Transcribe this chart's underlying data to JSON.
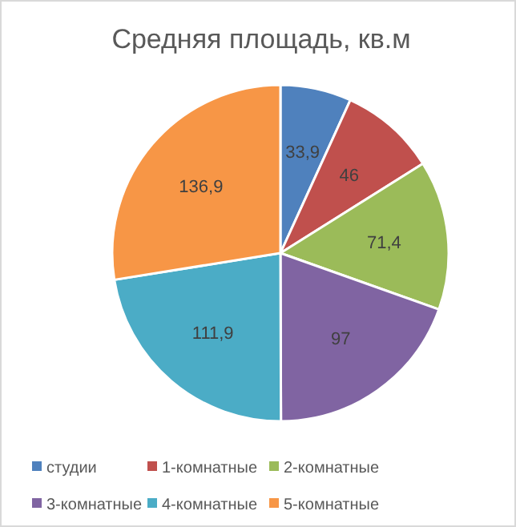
{
  "chart_data": {
    "type": "pie",
    "title": "Средняя площадь, кв.м",
    "categories": [
      "студии",
      "1-комнатные",
      "2-комнатные",
      "3-комнатные",
      "4-комнатные",
      "5-комнатные"
    ],
    "values": [
      33.9,
      46,
      71.4,
      97,
      111.9,
      136.9
    ],
    "value_labels": [
      "33,9",
      "46",
      "71,4",
      "97",
      "111,9",
      "136,9"
    ],
    "colors": [
      "#4f81bd",
      "#c0504d",
      "#9bbb59",
      "#8064a2",
      "#4bacc6",
      "#f79646"
    ],
    "legend": "bottom"
  }
}
